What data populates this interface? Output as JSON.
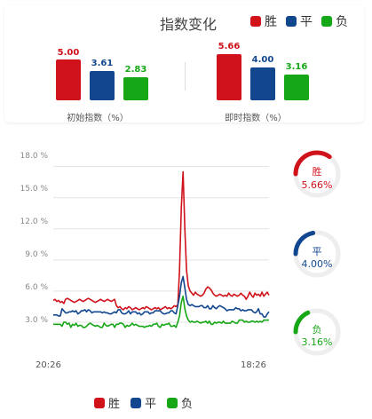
{
  "header": {
    "title": "指数变化"
  },
  "legend": [
    {
      "label": "胜",
      "color": "#d0121b"
    },
    {
      "label": "平",
      "color": "#12478f"
    },
    {
      "label": "负",
      "color": "#16a716"
    }
  ],
  "bars": {
    "initial": {
      "caption": "初始指数（%）",
      "values": [
        "5.00",
        "3.61",
        "2.83"
      ]
    },
    "current": {
      "caption": "即时指数（%）",
      "values": [
        "5.66",
        "4.00",
        "3.16"
      ]
    }
  },
  "chart_data": {
    "type": "line",
    "title": "",
    "xlabel": "",
    "ylabel": "",
    "x_ticks": [
      "20:26",
      "18:26"
    ],
    "y_ticks": [
      "3.0 %",
      "6.0 %",
      "9.0 %",
      "12.0 %",
      "15.0 %",
      "18.0 %"
    ],
    "ylim": [
      0,
      19
    ],
    "grid": true,
    "series": [
      {
        "name": "胜",
        "color": "#d0121b",
        "values": [
          5.1,
          5.2,
          5.0,
          5.1,
          4.9,
          5.0,
          4.8,
          5.2,
          5.3,
          5.2,
          5.1,
          5.0,
          4.9,
          5.0,
          5.1,
          5.2,
          5.1,
          5.0,
          5.1,
          5.2,
          5.3,
          5.2,
          5.1,
          5.0,
          4.9,
          5.0,
          5.1,
          5.2,
          5.1,
          5.0,
          5.1,
          5.2,
          5.1,
          5.0,
          5.1,
          5.2,
          4.6,
          4.4,
          4.5,
          4.3,
          4.2,
          4.4,
          4.3,
          4.5,
          4.4,
          4.2,
          4.3,
          4.4,
          4.3,
          4.2,
          4.3,
          4.4,
          4.3,
          4.5,
          4.4,
          4.3,
          4.2,
          4.3,
          4.4,
          4.3,
          4.4,
          4.2,
          4.3,
          4.4,
          4.5,
          4.3,
          4.4,
          4.3,
          4.4,
          4.6,
          4.5,
          4.7,
          8.0,
          14.0,
          17.5,
          12.0,
          8.0,
          6.5,
          6.0,
          5.8,
          5.6,
          5.9,
          5.7,
          5.6,
          5.5,
          5.6,
          5.8,
          6.2,
          6.4,
          6.3,
          6.1,
          5.8,
          5.6,
          5.5,
          5.6,
          5.7,
          5.6,
          5.5,
          5.6,
          5.5,
          5.8,
          5.6,
          5.5,
          5.7,
          5.6,
          5.5,
          5.6,
          5.8,
          5.6,
          5.5,
          5.2,
          5.5,
          5.9,
          5.6,
          5.4,
          5.8,
          5.6,
          5.7,
          5.5,
          5.9,
          5.5,
          5.7,
          5.9,
          5.6
        ]
      },
      {
        "name": "平",
        "color": "#12478f",
        "values": [
          3.7,
          3.7,
          3.7,
          3.6,
          3.6,
          4.3,
          4.1,
          3.9,
          3.9,
          4.0,
          4.0,
          4.1,
          4.0,
          4.1,
          3.8,
          3.9,
          4.1,
          4.1,
          4.2,
          4.0,
          4.2,
          4.1,
          3.9,
          4.0,
          4.0,
          4.0,
          4.0,
          4.0,
          3.9,
          4.0,
          3.9,
          3.9,
          3.8,
          3.8,
          3.9,
          4.0,
          3.9,
          4.2,
          4.2,
          3.9,
          3.8,
          3.8,
          3.9,
          4.1,
          3.8,
          4.0,
          4.0,
          4.0,
          3.8,
          3.9,
          3.7,
          3.8,
          4.0,
          4.0,
          4.0,
          3.8,
          3.9,
          3.9,
          4.1,
          4.1,
          4.1,
          4.1,
          3.9,
          3.8,
          3.8,
          3.9,
          3.9,
          4.1,
          4.1,
          3.9,
          3.8,
          4.6,
          5.5,
          6.8,
          7.4,
          6.3,
          5.2,
          4.7,
          4.6,
          4.7,
          4.6,
          4.5,
          4.5,
          4.5,
          4.6,
          4.6,
          4.4,
          4.4,
          4.6,
          4.3,
          4.3,
          4.6,
          4.4,
          4.3,
          4.5,
          4.6,
          4.5,
          4.4,
          4.3,
          4.1,
          4.2,
          4.2,
          4.2,
          4.2,
          4.4,
          4.3,
          4.3,
          4.1,
          4.2,
          4.1,
          4.1,
          4.2,
          4.2,
          4.2,
          4.0,
          3.9,
          4.0,
          4.3,
          3.8,
          3.8,
          3.5,
          3.5,
          3.8,
          4.0
        ]
      },
      {
        "name": "负",
        "color": "#16a716",
        "values": [
          2.8,
          2.8,
          2.8,
          2.8,
          2.8,
          2.6,
          3.0,
          3.0,
          2.8,
          2.9,
          2.5,
          2.8,
          2.7,
          2.9,
          2.6,
          2.7,
          2.7,
          2.5,
          2.5,
          2.6,
          2.8,
          2.9,
          2.8,
          2.7,
          2.6,
          2.7,
          2.6,
          2.5,
          2.5,
          2.9,
          2.7,
          2.6,
          2.7,
          2.8,
          2.8,
          2.5,
          2.8,
          2.8,
          2.9,
          2.9,
          2.8,
          2.5,
          2.7,
          2.6,
          2.7,
          2.9,
          2.7,
          2.8,
          2.7,
          2.6,
          2.6,
          2.6,
          2.5,
          2.6,
          2.6,
          2.7,
          2.6,
          2.8,
          2.8,
          2.9,
          2.6,
          2.5,
          2.8,
          2.7,
          2.8,
          2.8,
          2.9,
          2.6,
          2.6,
          2.7,
          2.5,
          3.0,
          3.6,
          4.9,
          5.5,
          4.3,
          3.6,
          3.2,
          3.0,
          3.1,
          3.0,
          3.0,
          3.1,
          3.0,
          2.9,
          3.0,
          3.0,
          3.1,
          2.9,
          3.1,
          2.8,
          2.8,
          3.0,
          2.9,
          3.0,
          3.0,
          2.9,
          3.1,
          2.9,
          2.9,
          2.9,
          2.9,
          3.1,
          3.0,
          2.9,
          2.9,
          3.2,
          3.2,
          3.2,
          3.0,
          3.1,
          3.0,
          3.0,
          3.1,
          3.1,
          3.0,
          3.1,
          3.0,
          3.1,
          3.0,
          3.2,
          3.2,
          3.2,
          3.2
        ]
      }
    ]
  },
  "gauges": [
    {
      "label": "胜",
      "value": "5.66%",
      "color": "#d0121b",
      "fraction": 0.35
    },
    {
      "label": "平",
      "value": "4.00%",
      "color": "#12478f",
      "fraction": 0.22
    },
    {
      "label": "负",
      "value": "3.16%",
      "color": "#16a716",
      "fraction": 0.18
    }
  ]
}
